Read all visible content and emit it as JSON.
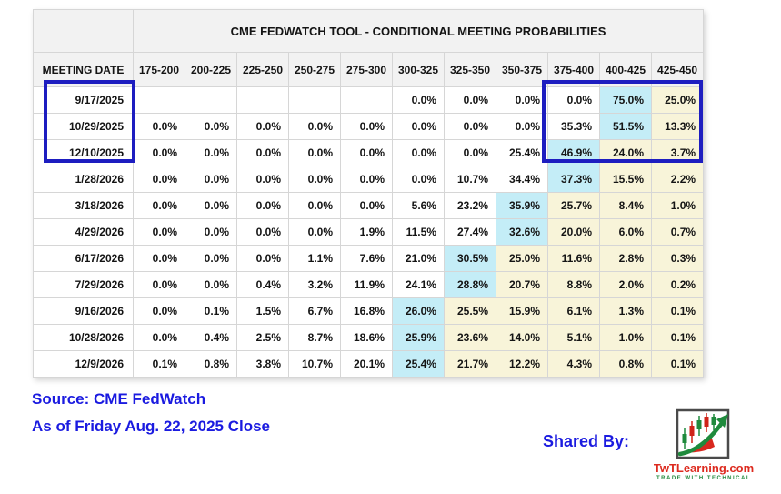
{
  "chart_data": {
    "type": "table",
    "title": "CME FEDWATCH TOOL - CONDITIONAL MEETING PROBABILITIES",
    "row_header_label": "MEETING DATE",
    "columns": [
      "175-200",
      "200-225",
      "225-250",
      "250-275",
      "275-300",
      "300-325",
      "325-350",
      "350-375",
      "375-400",
      "400-425",
      "425-450"
    ],
    "rows": [
      {
        "meeting_date": "9/17/2025",
        "values": [
          "",
          "",
          "",
          "",
          "",
          "0.0%",
          "0.0%",
          "0.0%",
          "0.0%",
          "75.0%",
          "25.0%"
        ],
        "max_col_index": 9
      },
      {
        "meeting_date": "10/29/2025",
        "values": [
          "0.0%",
          "0.0%",
          "0.0%",
          "0.0%",
          "0.0%",
          "0.0%",
          "0.0%",
          "0.0%",
          "35.3%",
          "51.5%",
          "13.3%"
        ],
        "max_col_index": 9
      },
      {
        "meeting_date": "12/10/2025",
        "values": [
          "0.0%",
          "0.0%",
          "0.0%",
          "0.0%",
          "0.0%",
          "0.0%",
          "0.0%",
          "25.4%",
          "46.9%",
          "24.0%",
          "3.7%"
        ],
        "max_col_index": 8
      },
      {
        "meeting_date": "1/28/2026",
        "values": [
          "0.0%",
          "0.0%",
          "0.0%",
          "0.0%",
          "0.0%",
          "0.0%",
          "10.7%",
          "34.4%",
          "37.3%",
          "15.5%",
          "2.2%"
        ],
        "max_col_index": 8
      },
      {
        "meeting_date": "3/18/2026",
        "values": [
          "0.0%",
          "0.0%",
          "0.0%",
          "0.0%",
          "0.0%",
          "5.6%",
          "23.2%",
          "35.9%",
          "25.7%",
          "8.4%",
          "1.0%"
        ],
        "max_col_index": 7
      },
      {
        "meeting_date": "4/29/2026",
        "values": [
          "0.0%",
          "0.0%",
          "0.0%",
          "0.0%",
          "1.9%",
          "11.5%",
          "27.4%",
          "32.6%",
          "20.0%",
          "6.0%",
          "0.7%"
        ],
        "max_col_index": 7
      },
      {
        "meeting_date": "6/17/2026",
        "values": [
          "0.0%",
          "0.0%",
          "0.0%",
          "1.1%",
          "7.6%",
          "21.0%",
          "30.5%",
          "25.0%",
          "11.6%",
          "2.8%",
          "0.3%"
        ],
        "max_col_index": 6
      },
      {
        "meeting_date": "7/29/2026",
        "values": [
          "0.0%",
          "0.0%",
          "0.4%",
          "3.2%",
          "11.9%",
          "24.1%",
          "28.8%",
          "20.7%",
          "8.8%",
          "2.0%",
          "0.2%"
        ],
        "max_col_index": 6
      },
      {
        "meeting_date": "9/16/2026",
        "values": [
          "0.0%",
          "0.1%",
          "1.5%",
          "6.7%",
          "16.8%",
          "26.0%",
          "25.5%",
          "15.9%",
          "6.1%",
          "1.3%",
          "0.1%"
        ],
        "max_col_index": 5
      },
      {
        "meeting_date": "10/28/2026",
        "values": [
          "0.0%",
          "0.4%",
          "2.5%",
          "8.7%",
          "18.6%",
          "25.9%",
          "23.6%",
          "14.0%",
          "5.1%",
          "1.0%",
          "0.1%"
        ],
        "max_col_index": 5
      },
      {
        "meeting_date": "12/9/2026",
        "values": [
          "0.1%",
          "0.8%",
          "3.8%",
          "10.7%",
          "20.1%",
          "25.4%",
          "21.7%",
          "12.2%",
          "4.3%",
          "0.8%",
          "0.1%"
        ],
        "max_col_index": 5
      }
    ],
    "layout_hints": {
      "highlight_rule": "cell with max probability is light blue; cells to its right are light cream",
      "callout_boxes": {
        "dates": [
          "9/17/2025",
          "10/29/2025",
          "12/10/2025"
        ],
        "columns": [
          "375-400",
          "400-425",
          "425-450"
        ]
      }
    },
    "colors": {
      "max_cell_bg": "#c4edf7",
      "trailing_cell_bg": "#f8f4d9",
      "callout_border": "#1d1dc0",
      "header_bg": "#f2f2f2",
      "footer_text_blue": "#1b1be0",
      "logo_name_red": "#dd2a1e",
      "logo_tagline_green": "#208a3c"
    }
  },
  "footer": {
    "source": "Source: CME FedWatch",
    "as_of": "As of Friday Aug. 22, 2025 Close",
    "shared_by_label": "Shared By:",
    "logo": {
      "name": "TwTLearning.com",
      "tagline": "TRADE WITH TECHNICAL"
    }
  }
}
